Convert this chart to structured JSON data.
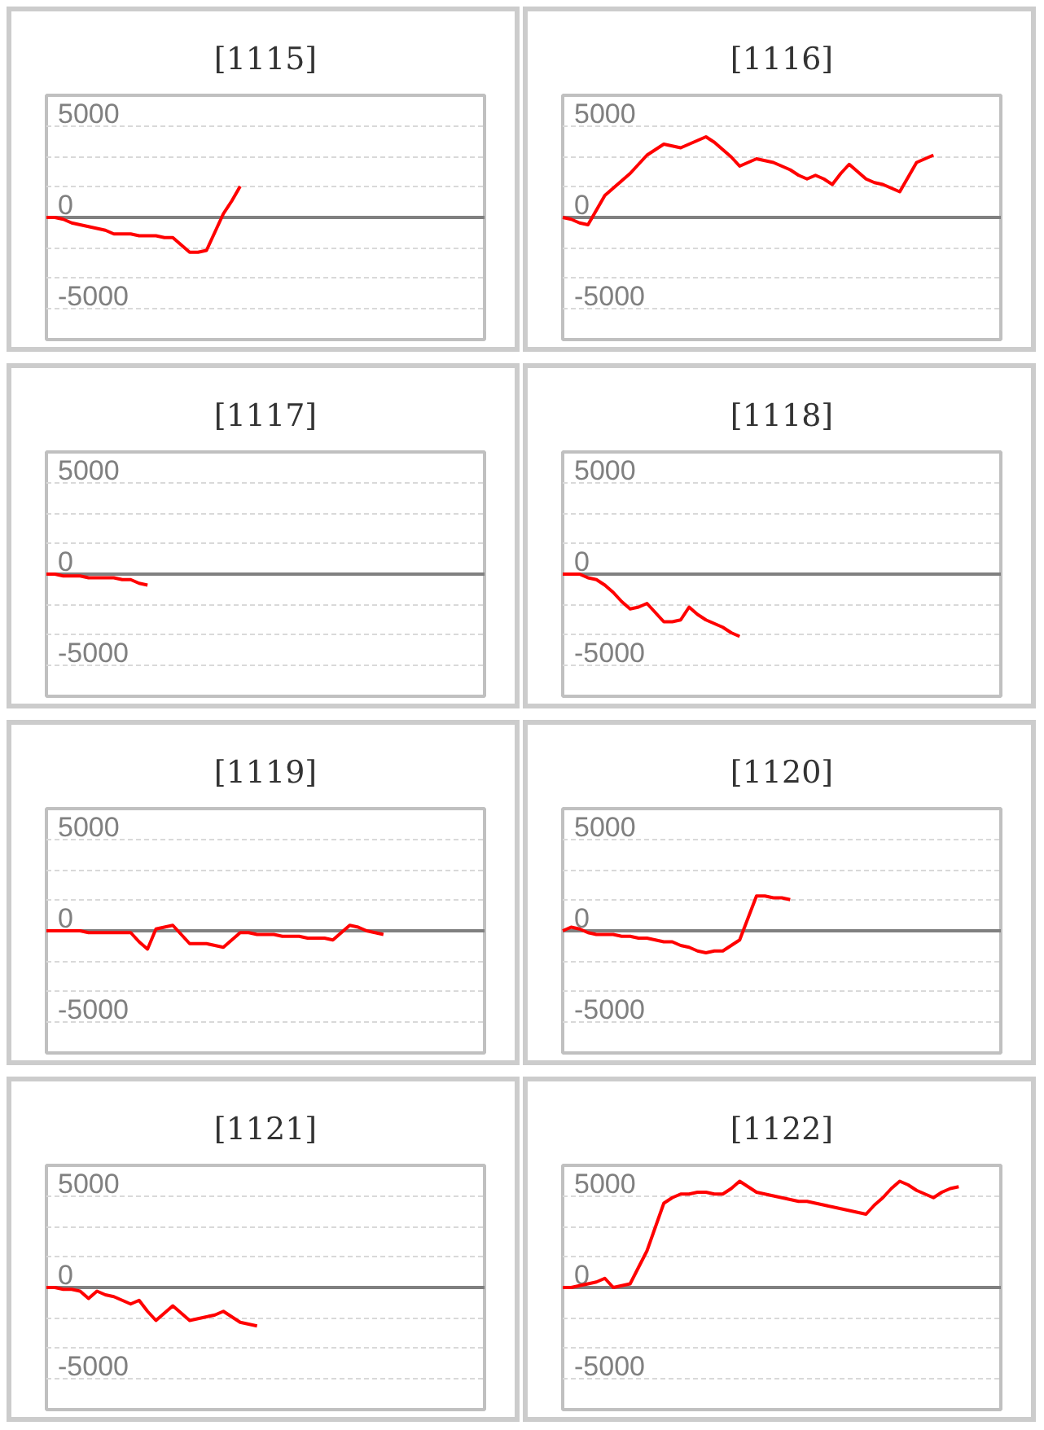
{
  "chart_data": [
    {
      "type": "line",
      "title": "[1115]",
      "categories": [
        null,
        null,
        null,
        null,
        null,
        null,
        null,
        null,
        null,
        null,
        null,
        null,
        null,
        null,
        null,
        null,
        null,
        null,
        null,
        null,
        null,
        null,
        null,
        null,
        null,
        null,
        null,
        null,
        null,
        null,
        null,
        null,
        null,
        null,
        null,
        null,
        null,
        null,
        null,
        null,
        null,
        null,
        null,
        null,
        null,
        null,
        null,
        null,
        null,
        null,
        null,
        null,
        null
      ],
      "series": [
        {
          "color": "#ff0000",
          "values": [
            0,
            0,
            -100,
            -300,
            -400,
            -500,
            -600,
            -700,
            -900,
            -900,
            -900,
            -1000,
            -1000,
            -1000,
            -1100,
            -1100,
            -1500,
            -1900,
            -1900,
            -1800,
            -800,
            200,
            900,
            1700,
            null,
            null,
            null,
            null,
            null,
            null,
            null,
            null,
            null,
            null,
            null,
            null,
            null,
            null,
            null,
            null,
            null,
            null,
            null,
            null,
            null,
            null,
            null,
            null,
            null,
            null,
            null,
            null,
            null
          ]
        }
      ],
      "ylim": [
        -6667,
        6667
      ],
      "yticks": [
        {
          "value": -5000,
          "label": "-5000"
        },
        {
          "value": -3333,
          "label": null
        },
        {
          "value": -1667,
          "label": null
        },
        0,
        {
          "value": 1667,
          "label": null
        },
        {
          "value": 3333,
          "label": null
        },
        5000
      ],
      "grid": "y",
      "tick_labels": "y",
      "line_style": "solid"
    },
    {
      "type": "line",
      "title": "[1116]",
      "categories": [
        null,
        null,
        null,
        null,
        null,
        null,
        null,
        null,
        null,
        null,
        null,
        null,
        null,
        null,
        null,
        null,
        null,
        null,
        null,
        null,
        null,
        null,
        null,
        null,
        null,
        null,
        null,
        null,
        null,
        null,
        null,
        null,
        null,
        null,
        null,
        null,
        null,
        null,
        null,
        null,
        null,
        null,
        null,
        null,
        null,
        null,
        null,
        null,
        null,
        null,
        null,
        null,
        null
      ],
      "series": [
        {
          "color": "#ff0000",
          "values": [
            0,
            -100,
            -300,
            -400,
            400,
            1200,
            1600,
            2000,
            2400,
            2900,
            3400,
            3700,
            4000,
            3900,
            3800,
            4000,
            4200,
            4400,
            4100,
            3700,
            3300,
            2800,
            3000,
            3200,
            3100,
            3000,
            2800,
            2600,
            2300,
            2100,
            2300,
            2100,
            1800,
            2400,
            2900,
            2500,
            2100,
            1900,
            1800,
            1600,
            1400,
            2200,
            3000,
            3200,
            3400,
            null,
            null,
            null,
            null,
            null,
            null,
            null,
            null
          ]
        }
      ],
      "ylim": [
        -6667,
        6667
      ],
      "yticks": [
        {
          "value": -5000,
          "label": "-5000"
        },
        {
          "value": -3333,
          "label": null
        },
        {
          "value": -1667,
          "label": null
        },
        0,
        {
          "value": 1667,
          "label": null
        },
        {
          "value": 3333,
          "label": null
        },
        5000
      ],
      "grid": "y",
      "tick_labels": "y",
      "line_style": "solid"
    },
    {
      "type": "line",
      "title": "[1117]",
      "categories": [
        null,
        null,
        null,
        null,
        null,
        null,
        null,
        null,
        null,
        null,
        null,
        null,
        null,
        null,
        null,
        null,
        null,
        null,
        null,
        null,
        null,
        null,
        null,
        null,
        null,
        null,
        null,
        null,
        null,
        null,
        null,
        null,
        null,
        null,
        null,
        null,
        null,
        null,
        null,
        null,
        null,
        null,
        null,
        null,
        null,
        null,
        null,
        null,
        null,
        null,
        null,
        null,
        null
      ],
      "series": [
        {
          "color": "#ff0000",
          "values": [
            0,
            0,
            -100,
            -100,
            -100,
            -200,
            -200,
            -200,
            -200,
            -300,
            -300,
            -500,
            -600,
            null,
            null,
            null,
            null,
            null,
            null,
            null,
            null,
            null,
            null,
            null,
            null,
            null,
            null,
            null,
            null,
            null,
            null,
            null,
            null,
            null,
            null,
            null,
            null,
            null,
            null,
            null,
            null,
            null,
            null,
            null,
            null,
            null,
            null,
            null,
            null,
            null,
            null,
            null,
            null
          ]
        }
      ],
      "ylim": [
        -6667,
        6667
      ],
      "yticks": [
        {
          "value": -5000,
          "label": "-5000"
        },
        {
          "value": -3333,
          "label": null
        },
        {
          "value": -1667,
          "label": null
        },
        0,
        {
          "value": 1667,
          "label": null
        },
        {
          "value": 3333,
          "label": null
        },
        5000
      ],
      "grid": "y",
      "tick_labels": "y",
      "line_style": "solid"
    },
    {
      "type": "line",
      "title": "[1118]",
      "categories": [
        null,
        null,
        null,
        null,
        null,
        null,
        null,
        null,
        null,
        null,
        null,
        null,
        null,
        null,
        null,
        null,
        null,
        null,
        null,
        null,
        null,
        null,
        null,
        null,
        null,
        null,
        null,
        null,
        null,
        null,
        null,
        null,
        null,
        null,
        null,
        null,
        null,
        null,
        null,
        null,
        null,
        null,
        null,
        null,
        null,
        null,
        null,
        null,
        null,
        null,
        null,
        null,
        null
      ],
      "series": [
        {
          "color": "#ff0000",
          "values": [
            0,
            0,
            0,
            -200,
            -300,
            -600,
            -1000,
            -1500,
            -1900,
            -1800,
            -1600,
            -2100,
            -2600,
            -2600,
            -2500,
            -1800,
            -2200,
            -2500,
            -2700,
            -2900,
            -3200,
            -3400,
            null,
            null,
            null,
            null,
            null,
            null,
            null,
            null,
            null,
            null,
            null,
            null,
            null,
            null,
            null,
            null,
            null,
            null,
            null,
            null,
            null,
            null,
            null,
            null,
            null,
            null,
            null,
            null,
            null,
            null,
            null
          ]
        }
      ],
      "ylim": [
        -6667,
        6667
      ],
      "yticks": [
        {
          "value": -5000,
          "label": "-5000"
        },
        {
          "value": -3333,
          "label": null
        },
        {
          "value": -1667,
          "label": null
        },
        0,
        {
          "value": 1667,
          "label": null
        },
        {
          "value": 3333,
          "label": null
        },
        5000
      ],
      "grid": "y",
      "tick_labels": "y",
      "line_style": "solid"
    },
    {
      "type": "line",
      "title": "[1119]",
      "categories": [
        null,
        null,
        null,
        null,
        null,
        null,
        null,
        null,
        null,
        null,
        null,
        null,
        null,
        null,
        null,
        null,
        null,
        null,
        null,
        null,
        null,
        null,
        null,
        null,
        null,
        null,
        null,
        null,
        null,
        null,
        null,
        null,
        null,
        null,
        null,
        null,
        null,
        null,
        null,
        null,
        null,
        null,
        null,
        null,
        null,
        null,
        null,
        null,
        null,
        null,
        null,
        null,
        null
      ],
      "series": [
        {
          "color": "#ff0000",
          "values": [
            0,
            0,
            0,
            0,
            0,
            -100,
            -100,
            -100,
            -100,
            -100,
            -100,
            -600,
            -1000,
            100,
            200,
            300,
            -200,
            -700,
            -700,
            -700,
            -800,
            -900,
            -500,
            -100,
            -100,
            -200,
            -200,
            -200,
            -300,
            -300,
            -300,
            -400,
            -400,
            -400,
            -500,
            -100,
            300,
            200,
            0,
            -100,
            -200,
            null,
            null,
            null,
            null,
            null,
            null,
            null,
            null,
            null,
            null,
            null,
            null
          ]
        }
      ],
      "ylim": [
        -6667,
        6667
      ],
      "yticks": [
        {
          "value": -5000,
          "label": "-5000"
        },
        {
          "value": -3333,
          "label": null
        },
        {
          "value": -1667,
          "label": null
        },
        0,
        {
          "value": 1667,
          "label": null
        },
        {
          "value": 3333,
          "label": null
        },
        5000
      ],
      "grid": "y",
      "tick_labels": "y",
      "line_style": "solid"
    },
    {
      "type": "line",
      "title": "[1120]",
      "categories": [
        null,
        null,
        null,
        null,
        null,
        null,
        null,
        null,
        null,
        null,
        null,
        null,
        null,
        null,
        null,
        null,
        null,
        null,
        null,
        null,
        null,
        null,
        null,
        null,
        null,
        null,
        null,
        null,
        null,
        null,
        null,
        null,
        null,
        null,
        null,
        null,
        null,
        null,
        null,
        null,
        null,
        null,
        null,
        null,
        null,
        null,
        null,
        null,
        null,
        null,
        null,
        null,
        null
      ],
      "series": [
        {
          "color": "#ff0000",
          "values": [
            0,
            200,
            100,
            -100,
            -200,
            -200,
            -200,
            -300,
            -300,
            -400,
            -400,
            -500,
            -600,
            -600,
            -800,
            -900,
            -1100,
            -1200,
            -1100,
            -1100,
            -800,
            -500,
            700,
            1900,
            1900,
            1800,
            1800,
            1700,
            null,
            null,
            null,
            null,
            null,
            null,
            null,
            null,
            null,
            null,
            null,
            null,
            null,
            null,
            null,
            null,
            null,
            null,
            null,
            null,
            null,
            null,
            null,
            null,
            null
          ]
        }
      ],
      "ylim": [
        -6667,
        6667
      ],
      "yticks": [
        {
          "value": -5000,
          "label": "-5000"
        },
        {
          "value": -3333,
          "label": null
        },
        {
          "value": -1667,
          "label": null
        },
        0,
        {
          "value": 1667,
          "label": null
        },
        {
          "value": 3333,
          "label": null
        },
        5000
      ],
      "grid": "y",
      "tick_labels": "y",
      "line_style": "solid"
    },
    {
      "type": "line",
      "title": "[1121]",
      "categories": [
        null,
        null,
        null,
        null,
        null,
        null,
        null,
        null,
        null,
        null,
        null,
        null,
        null,
        null,
        null,
        null,
        null,
        null,
        null,
        null,
        null,
        null,
        null,
        null,
        null,
        null,
        null,
        null,
        null,
        null,
        null,
        null,
        null,
        null,
        null,
        null,
        null,
        null,
        null,
        null,
        null,
        null,
        null,
        null,
        null,
        null,
        null,
        null,
        null,
        null,
        null,
        null,
        null
      ],
      "series": [
        {
          "color": "#ff0000",
          "values": [
            0,
            0,
            -100,
            -100,
            -200,
            -600,
            -200,
            -400,
            -500,
            -700,
            -900,
            -700,
            -1300,
            -1800,
            -1400,
            -1000,
            -1400,
            -1800,
            -1700,
            -1600,
            -1500,
            -1300,
            -1600,
            -1900,
            -2000,
            -2100,
            null,
            null,
            null,
            null,
            null,
            null,
            null,
            null,
            null,
            null,
            null,
            null,
            null,
            null,
            null,
            null,
            null,
            null,
            null,
            null,
            null,
            null,
            null,
            null,
            null,
            null,
            null
          ]
        }
      ],
      "ylim": [
        -6667,
        6667
      ],
      "yticks": [
        {
          "value": -5000,
          "label": "-5000"
        },
        {
          "value": -3333,
          "label": null
        },
        {
          "value": -1667,
          "label": null
        },
        0,
        {
          "value": 1667,
          "label": null
        },
        {
          "value": 3333,
          "label": null
        },
        5000
      ],
      "grid": "y",
      "tick_labels": "y",
      "line_style": "solid"
    },
    {
      "type": "line",
      "title": "[1122]",
      "categories": [
        null,
        null,
        null,
        null,
        null,
        null,
        null,
        null,
        null,
        null,
        null,
        null,
        null,
        null,
        null,
        null,
        null,
        null,
        null,
        null,
        null,
        null,
        null,
        null,
        null,
        null,
        null,
        null,
        null,
        null,
        null,
        null,
        null,
        null,
        null,
        null,
        null,
        null,
        null,
        null,
        null,
        null,
        null,
        null,
        null,
        null,
        null,
        null,
        null,
        null,
        null,
        null,
        null
      ],
      "series": [
        {
          "color": "#ff0000",
          "values": [
            0,
            0,
            100,
            200,
            300,
            500,
            0,
            100,
            200,
            1100,
            2000,
            3300,
            4600,
            4900,
            5100,
            5100,
            5200,
            5200,
            5100,
            5100,
            5400,
            5800,
            5500,
            5200,
            5100,
            5000,
            4900,
            4800,
            4700,
            4700,
            4600,
            4500,
            4400,
            4300,
            4200,
            4100,
            4000,
            4500,
            4900,
            5400,
            5800,
            5600,
            5300,
            5100,
            4900,
            5200,
            5400,
            5500,
            null,
            null,
            null,
            null,
            null
          ]
        }
      ],
      "ylim": [
        -6667,
        6667
      ],
      "yticks": [
        {
          "value": -5000,
          "label": "-5000"
        },
        {
          "value": -3333,
          "label": null
        },
        {
          "value": -1667,
          "label": null
        },
        0,
        {
          "value": 1667,
          "label": null
        },
        {
          "value": 3333,
          "label": null
        },
        5000
      ],
      "grid": "y",
      "tick_labels": "y",
      "line_style": "solid"
    }
  ]
}
